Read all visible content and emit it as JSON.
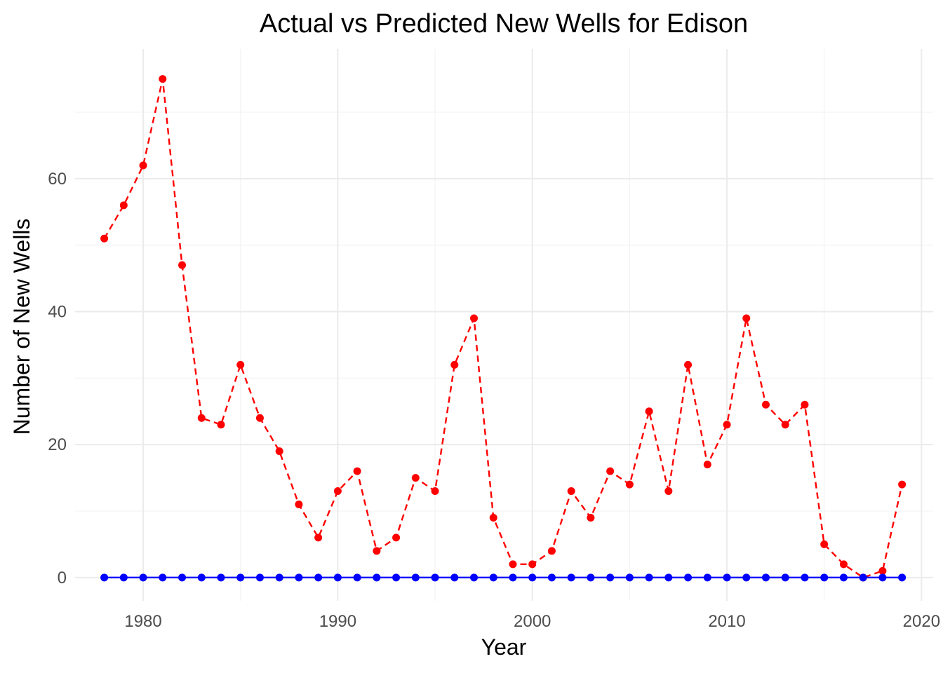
{
  "chart_data": {
    "type": "line",
    "title": "Actual vs Predicted New Wells for Edison",
    "xlabel": "Year",
    "ylabel": "Number of New Wells",
    "xlim": [
      1976.5,
      2020.6
    ],
    "ylim": [
      -3.5,
      79.5
    ],
    "x_ticks": [
      1980,
      1990,
      2000,
      2010,
      2020
    ],
    "y_ticks": [
      0,
      20,
      40,
      60
    ],
    "grid": true,
    "legend": "none",
    "x": [
      1978,
      1979,
      1980,
      1981,
      1982,
      1983,
      1984,
      1985,
      1986,
      1987,
      1988,
      1989,
      1990,
      1991,
      1992,
      1993,
      1994,
      1995,
      1996,
      1997,
      1998,
      1999,
      2000,
      2001,
      2002,
      2003,
      2004,
      2005,
      2006,
      2007,
      2008,
      2009,
      2010,
      2011,
      2012,
      2013,
      2014,
      2015,
      2016,
      2017,
      2018,
      2019
    ],
    "series": [
      {
        "color": "#ff0000",
        "line_style": "dashed",
        "values": [
          51,
          56,
          62,
          75,
          47,
          24,
          23,
          32,
          24,
          19,
          11,
          6,
          13,
          16,
          4,
          6,
          15,
          13,
          32,
          39,
          9,
          2,
          2,
          4,
          13,
          9,
          16,
          14,
          25,
          13,
          32,
          17,
          23,
          39,
          26,
          23,
          26,
          5,
          2,
          0,
          1,
          14
        ]
      },
      {
        "color": "#0000ff",
        "line_style": "solid",
        "values": [
          0,
          0,
          0,
          0,
          0,
          0,
          0,
          0,
          0,
          0,
          0,
          0,
          0,
          0,
          0,
          0,
          0,
          0,
          0,
          0,
          0,
          0,
          0,
          0,
          0,
          0,
          0,
          0,
          0,
          0,
          0,
          0,
          0,
          0,
          0,
          0,
          0,
          0,
          0,
          0,
          0,
          0
        ]
      }
    ]
  }
}
